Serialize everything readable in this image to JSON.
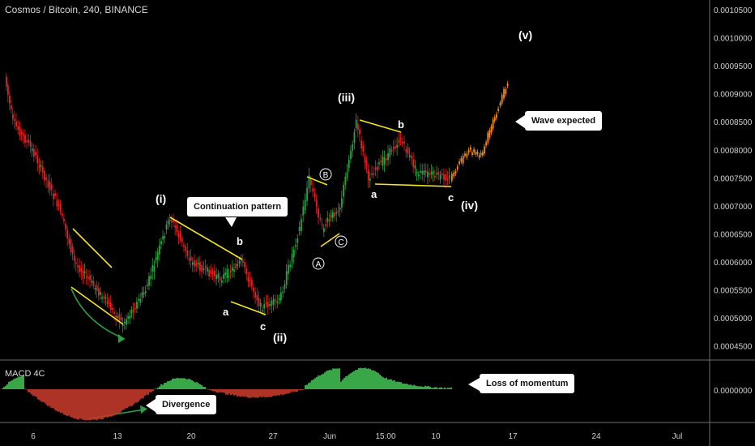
{
  "header": {
    "title": "Cosmos / Bitcoin, 240, BINANCE"
  },
  "macd": {
    "title": "MACD 4C",
    "zero_label": "0.0000000"
  },
  "callouts": {
    "continuation": "Continuation pattern",
    "wave_expected": "Wave expected",
    "loss_of_momentum": "Loss of momentum",
    "divergence": "Divergence"
  },
  "colors": {
    "up": "#2ea043",
    "down": "#e02424",
    "projection": "#f08a1c",
    "trend": "#f5e51b",
    "macd_pos": "#3fb950",
    "macd_neg": "#c0392b"
  },
  "chart_data": {
    "type": "candlestick",
    "title": "Cosmos / Bitcoin, 240, BINANCE",
    "y_axis": {
      "ylim": [
        0.00043,
        0.00106
      ],
      "ticks": [
        "0.0010500",
        "0.0010000",
        "0.0009500",
        "0.0009000",
        "0.0008500",
        "0.0008000",
        "0.0007500",
        "0.0007000",
        "0.0006500",
        "0.0006000",
        "0.0005500",
        "0.0005000",
        "0.0004500"
      ]
    },
    "x_axis": {
      "ticks": [
        "6",
        "13",
        "20",
        "27",
        "Jun",
        "15:00",
        "10",
        "17",
        "24",
        "Jul"
      ]
    },
    "price_path": [
      {
        "x": "4",
        "y": 0.00093
      },
      {
        "x": "5",
        "y": 0.00085
      },
      {
        "x": "7",
        "y": 0.0008
      },
      {
        "x": "9",
        "y": 0.00069
      },
      {
        "x": "10",
        "y": 0.0006
      },
      {
        "x": "12",
        "y": 0.00055
      },
      {
        "x": "14",
        "y": 0.00049
      },
      {
        "x": "16",
        "y": 0.00055
      },
      {
        "x": "18",
        "y": 0.00068
      },
      {
        "x": "20",
        "y": 0.0006
      },
      {
        "x": "23",
        "y": 0.00057
      },
      {
        "x": "24",
        "y": 0.0006
      },
      {
        "x": "26",
        "y": 0.00052
      },
      {
        "x": "28",
        "y": 0.00053
      },
      {
        "x": "29",
        "y": 0.00066
      },
      {
        "x": "30",
        "y": 0.00075
      },
      {
        "x": "Jun",
        "y": 0.00066
      },
      {
        "x": "2",
        "y": 0.0007
      },
      {
        "x": "3",
        "y": 0.00085
      },
      {
        "x": "4",
        "y": 0.00075
      },
      {
        "x": "6",
        "y": 0.00082
      },
      {
        "x": "8",
        "y": 0.00076
      },
      {
        "x": "11",
        "y": 0.00075
      }
    ],
    "projection": [
      {
        "x": "11",
        "y": 0.00075
      },
      {
        "x": "13",
        "y": 0.0008
      },
      {
        "x": "14",
        "y": 0.00079
      },
      {
        "x": "16",
        "y": 0.00086
      },
      {
        "x": "17",
        "y": 0.00092
      }
    ],
    "wave_labels": [
      "(i)",
      "(ii)",
      "(iii)",
      "(iv)",
      "(v)"
    ],
    "abc_labels": [
      "a",
      "b",
      "c",
      "a",
      "b",
      "c"
    ],
    "circled_labels": [
      "A",
      "B",
      "C"
    ],
    "macd_series": "histogram (4 colors), rises above zero in late May / early Jun, fades near zero"
  }
}
